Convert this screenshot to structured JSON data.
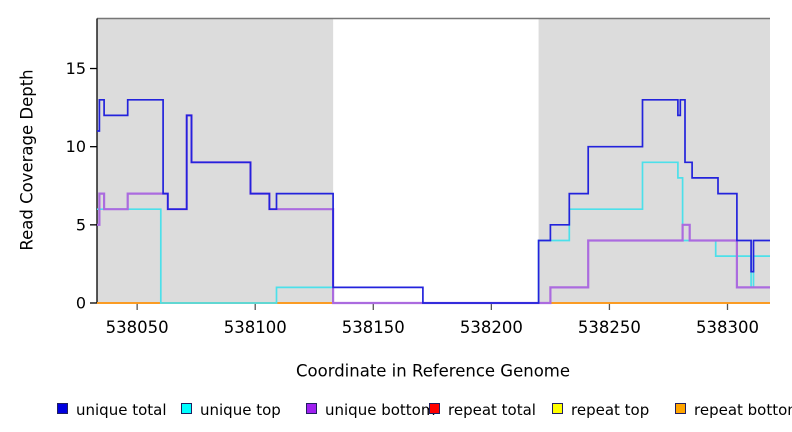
{
  "chart_data": {
    "type": "line",
    "subtype": "step-coverage-plot",
    "title": "",
    "xlabel": "Coordinate in Reference Genome",
    "ylabel": "Read Coverage Depth",
    "xlim": [
      538033,
      538318
    ],
    "ylim": [
      0,
      18.2
    ],
    "x_ticks": [
      538050,
      538100,
      538150,
      538200,
      538250,
      538300
    ],
    "y_ticks": [
      0,
      5,
      10,
      15
    ],
    "grid": false,
    "legend_position": "bottom",
    "shaded_region_color": "#DCDCDC",
    "shaded_regions": [
      {
        "from": 538033,
        "to": 538133
      },
      {
        "from": 538220,
        "to": 538318
      }
    ],
    "series": [
      {
        "name": "unique total",
        "color": "#2323DC",
        "legend_fill": "#0000E0",
        "points": [
          [
            538033,
            11
          ],
          [
            538034,
            13
          ],
          [
            538036,
            12
          ],
          [
            538046,
            13
          ],
          [
            538061,
            7
          ],
          [
            538063,
            6
          ],
          [
            538071,
            12
          ],
          [
            538073,
            9
          ],
          [
            538098,
            7
          ],
          [
            538106,
            6
          ],
          [
            538109,
            7
          ],
          [
            538133,
            1
          ],
          [
            538171,
            0
          ],
          [
            538220,
            4
          ],
          [
            538225,
            5
          ],
          [
            538233,
            7
          ],
          [
            538241,
            10
          ],
          [
            538264,
            13
          ],
          [
            538279,
            12
          ],
          [
            538280,
            13
          ],
          [
            538282,
            9
          ],
          [
            538285,
            8
          ],
          [
            538296,
            7
          ],
          [
            538304,
            4
          ],
          [
            538310,
            2
          ],
          [
            538311,
            4
          ]
        ]
      },
      {
        "name": "unique top",
        "color": "#4CE0EA",
        "legend_fill": "#00FFFF",
        "points": [
          [
            538033,
            6
          ],
          [
            538060,
            0
          ],
          [
            538109,
            1
          ],
          [
            538133,
            0
          ],
          [
            538220,
            4
          ],
          [
            538233,
            6
          ],
          [
            538264,
            9
          ],
          [
            538279,
            8
          ],
          [
            538281,
            4
          ],
          [
            538295,
            3
          ],
          [
            538310,
            1
          ],
          [
            538311,
            3
          ]
        ]
      },
      {
        "name": "unique bottom",
        "color": "#AB6BDF",
        "legend_fill": "#A020F0",
        "points": [
          [
            538033,
            5
          ],
          [
            538034,
            7
          ],
          [
            538036,
            6
          ],
          [
            538046,
            7
          ],
          [
            538063,
            6
          ],
          [
            538071,
            12
          ],
          [
            538073,
            9
          ],
          [
            538098,
            7
          ],
          [
            538106,
            6
          ],
          [
            538133,
            0
          ],
          [
            538225,
            1
          ],
          [
            538241,
            4
          ],
          [
            538281,
            5
          ],
          [
            538284,
            4
          ],
          [
            538304,
            1
          ]
        ]
      },
      {
        "name": "repeat total",
        "color": "#E04060",
        "legend_fill": "#FF0000",
        "points": [
          [
            538033,
            0
          ]
        ]
      },
      {
        "name": "repeat top",
        "color": "#FFFF33",
        "legend_fill": "#FFFF00",
        "points": [
          [
            538033,
            0
          ]
        ]
      },
      {
        "name": "repeat bottom",
        "color": "#FF9E1A",
        "legend_fill": "#FFA500",
        "points": [
          [
            538033,
            0
          ]
        ]
      }
    ],
    "draw_order": [
      "repeat top",
      "repeat total",
      "repeat bottom",
      "unique top",
      "unique bottom",
      "unique total"
    ]
  }
}
